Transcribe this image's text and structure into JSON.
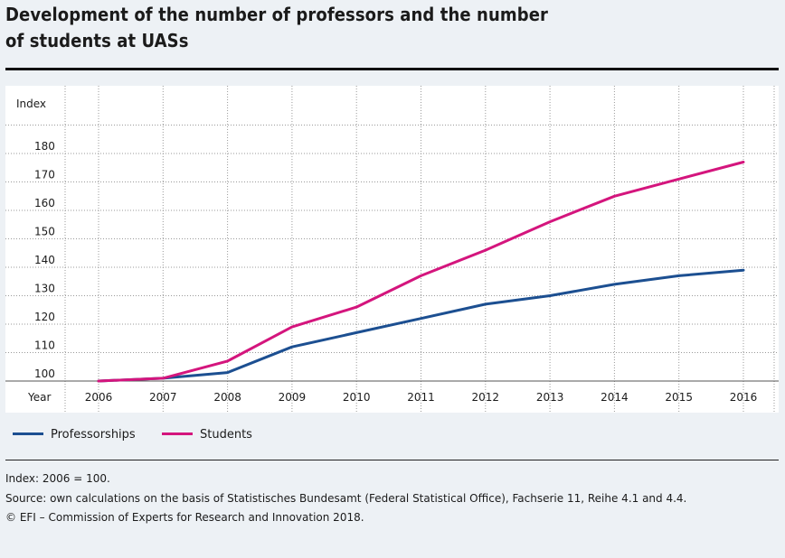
{
  "header": {
    "title_line1": "Development of the number of professors and the number",
    "title_line2": "of students at UASs"
  },
  "chart_data": {
    "type": "line",
    "ylabel": "Index",
    "xlabel": "Year",
    "x": [
      "2006",
      "2007",
      "2008",
      "2009",
      "2010",
      "2011",
      "2012",
      "2013",
      "2014",
      "2015",
      "2016"
    ],
    "yticks": [
      "100",
      "110",
      "120",
      "130",
      "140",
      "150",
      "160",
      "170",
      "180"
    ],
    "ylim": [
      97,
      195
    ],
    "series": [
      {
        "name": "Professorships",
        "color": "#1c4f91",
        "values": [
          100,
          101,
          103,
          112,
          117,
          122,
          127,
          130,
          134,
          137,
          139
        ]
      },
      {
        "name": "Students",
        "color": "#d4157d",
        "values": [
          100,
          101,
          107,
          119,
          126,
          137,
          146,
          156,
          165,
          171,
          177
        ]
      }
    ],
    "legend_position": "bottom-left",
    "grid": true
  },
  "notes": {
    "index_note": "Index: 2006 = 100.",
    "source": "Source: own calculations on the basis of Statistisches Bundesamt (Federal Statistical Office), Fachserie 11, Reihe 4.1 and 4.4.",
    "copyright": "© EFI – Commission of Experts for Research and Innovation 2018."
  }
}
